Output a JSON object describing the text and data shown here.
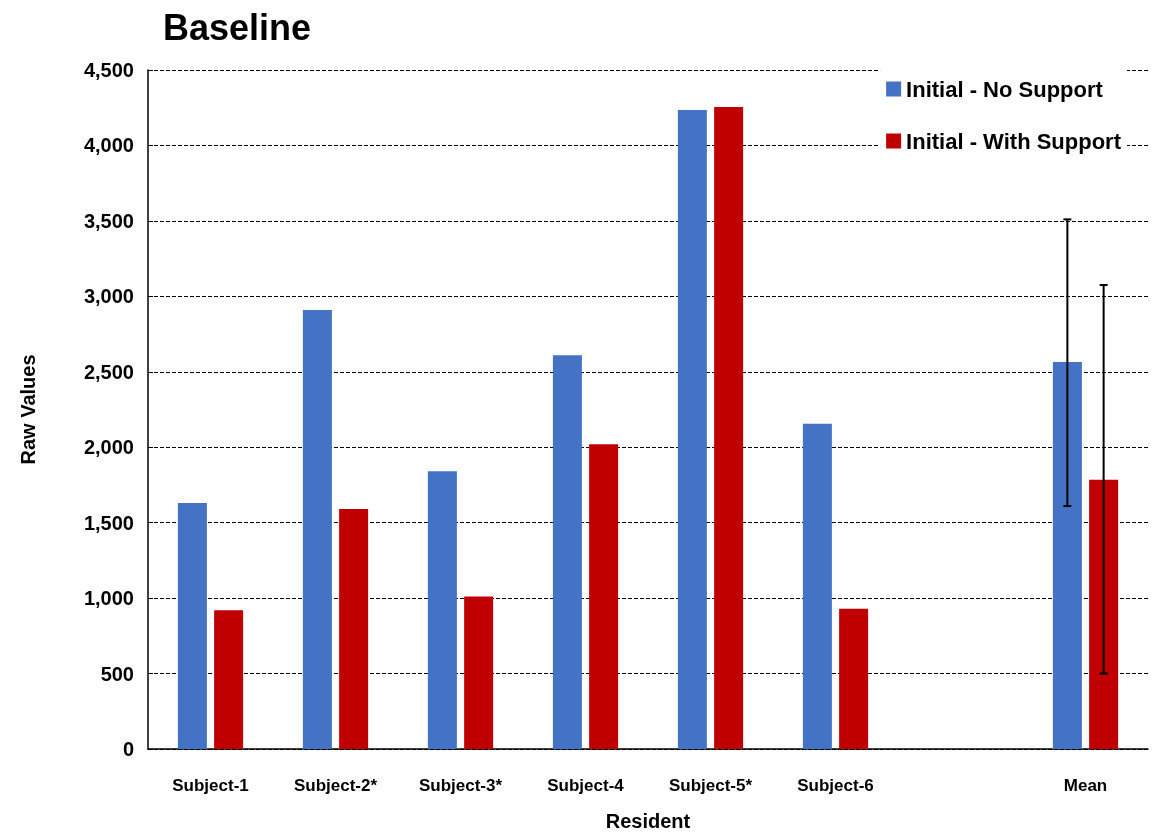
{
  "chart_data": {
    "type": "bar",
    "title": "Baseline",
    "xlabel": "Resident",
    "ylabel": "Raw Values",
    "categories": [
      "Subject-1",
      "Subject-2*",
      "Subject-3*",
      "Subject-4",
      "Subject-5*",
      "Subject-6",
      null,
      "Mean"
    ],
    "series": [
      {
        "name": "Initial - No Support",
        "color": "#4472c4",
        "values": [
          1630,
          2910,
          1840,
          2610,
          4235,
          2155,
          null,
          2565
        ],
        "errors": [
          null,
          null,
          null,
          null,
          null,
          null,
          null,
          [
            1610,
            3510
          ]
        ]
      },
      {
        "name": "Initial - With Support",
        "color": "#c00000",
        "values": [
          920,
          1590,
          1010,
          2020,
          4255,
          930,
          null,
          1785
        ],
        "errors": [
          null,
          null,
          null,
          null,
          null,
          null,
          null,
          [
            500,
            3075
          ]
        ]
      }
    ],
    "ylim": [
      0,
      4500
    ],
    "yticks": [
      0,
      500,
      {
        "value": 1000,
        "label": "1,000"
      },
      {
        "value": 1500,
        "label": "1,500"
      },
      {
        "value": 2000,
        "label": "2,000"
      },
      {
        "value": 2500,
        "label": "2,500"
      },
      {
        "value": 3000,
        "label": "3,000"
      },
      {
        "value": 3500,
        "label": "3,500"
      },
      {
        "value": 4000,
        "label": "4,000"
      },
      {
        "value": 4500,
        "label": "4,500"
      }
    ],
    "grid": "y",
    "legend": "top right"
  }
}
